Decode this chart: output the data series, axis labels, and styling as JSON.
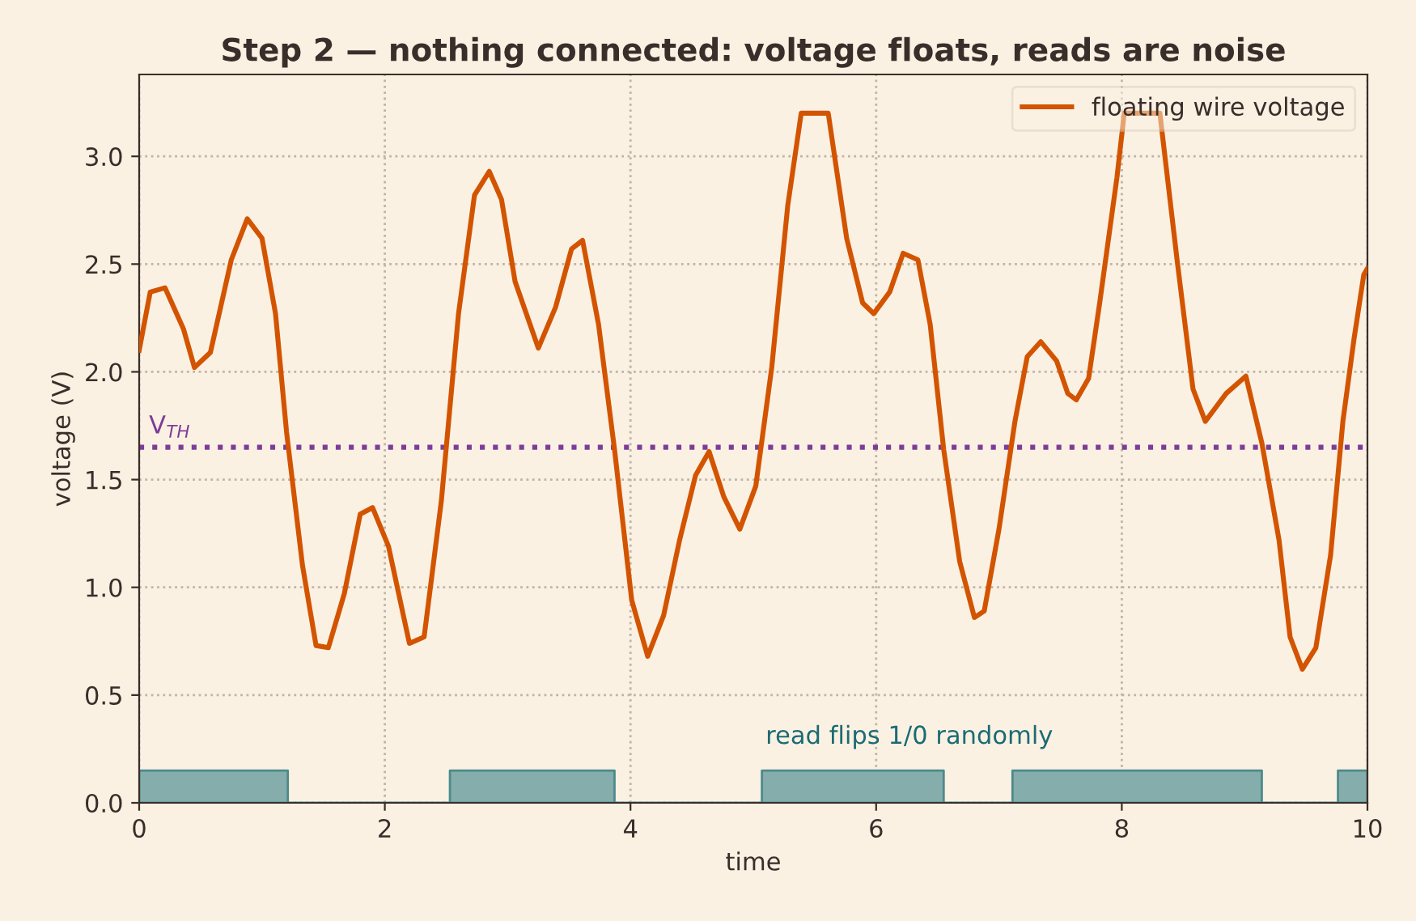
{
  "chart_data": {
    "type": "line",
    "title": "Step 2 — nothing connected: voltage floats, reads are noise",
    "xlabel": "time",
    "ylabel": "voltage (V)",
    "xlim": [
      0,
      10
    ],
    "ylim": [
      0,
      3.38
    ],
    "xticks": [
      0,
      2,
      4,
      6,
      8,
      10
    ],
    "yticks": [
      {
        "value": 0,
        "label": "0.0"
      },
      {
        "value": 0.5,
        "label": "0.5"
      },
      {
        "value": 1,
        "label": "1.0"
      },
      {
        "value": 1.5,
        "label": "1.5"
      },
      {
        "value": 2,
        "label": "2.0"
      },
      {
        "value": 2.5,
        "label": "2.5"
      },
      {
        "value": 3,
        "label": "3.0"
      }
    ],
    "grid": true,
    "legend": "top right",
    "marker": "none",
    "line_style": "solid",
    "series": [
      {
        "name": "floating wire voltage",
        "color": "#d35400",
        "x": [
          0,
          0.09,
          0.21,
          0.36,
          0.45,
          0.58,
          0.75,
          0.88,
          1.0,
          1.11,
          1.2,
          1.33,
          1.44,
          1.54,
          1.67,
          1.8,
          1.9,
          2.03,
          2.2,
          2.32,
          2.46,
          2.6,
          2.73,
          2.85,
          2.95,
          3.06,
          3.25,
          3.39,
          3.52,
          3.61,
          3.74,
          3.87,
          4.01,
          4.14,
          4.27,
          4.4,
          4.53,
          4.64,
          4.76,
          4.89,
          5.02,
          5.15,
          5.28,
          5.39,
          5.61,
          5.76,
          5.89,
          5.98,
          6.11,
          6.22,
          6.34,
          6.44,
          6.55,
          6.68,
          6.8,
          6.88,
          7.0,
          7.13,
          7.23,
          7.34,
          7.47,
          7.56,
          7.63,
          7.73,
          7.82,
          7.96,
          8.02,
          8.31,
          8.45,
          8.58,
          8.68,
          8.85,
          9.01,
          9.14,
          9.28,
          9.37,
          9.47,
          9.58,
          9.7,
          9.8,
          9.89,
          9.97,
          10
        ],
        "values": [
          2.1,
          2.37,
          2.39,
          2.2,
          2.02,
          2.09,
          2.52,
          2.71,
          2.62,
          2.27,
          1.72,
          1.1,
          0.73,
          0.72,
          0.97,
          1.34,
          1.37,
          1.19,
          0.74,
          0.77,
          1.4,
          2.27,
          2.82,
          2.93,
          2.8,
          2.42,
          2.11,
          2.3,
          2.57,
          2.61,
          2.22,
          1.64,
          0.94,
          0.68,
          0.87,
          1.22,
          1.52,
          1.63,
          1.42,
          1.27,
          1.47,
          2.02,
          2.77,
          3.2,
          3.2,
          2.62,
          2.32,
          2.27,
          2.37,
          2.55,
          2.52,
          2.22,
          1.64,
          1.12,
          0.86,
          0.89,
          1.27,
          1.77,
          2.07,
          2.14,
          2.05,
          1.9,
          1.87,
          1.97,
          2.32,
          2.9,
          3.2,
          3.2,
          2.52,
          1.92,
          1.77,
          1.9,
          1.98,
          1.67,
          1.22,
          0.77,
          0.62,
          0.72,
          1.15,
          1.77,
          2.15,
          2.45,
          2.48
        ]
      },
      {
        "color": "#85adab",
        "type": "area",
        "x": [
          0,
          1.21,
          1.21,
          2.53,
          2.53,
          3.87,
          3.87,
          5.07,
          5.07,
          6.55,
          6.55,
          7.11,
          7.11,
          9.14,
          9.14,
          9.76,
          9.76,
          10
        ],
        "values": [
          0.15,
          0.15,
          0,
          0,
          0.15,
          0.15,
          0,
          0,
          0.15,
          0.15,
          0,
          0,
          0.15,
          0.15,
          0,
          0,
          0.15,
          0.15
        ]
      }
    ],
    "ref_lines": [
      {
        "axis": "y",
        "value": 1.65,
        "label": "V$_{TH}$",
        "color": "#7d3c98",
        "line_style": "dotted"
      }
    ],
    "annotations": [
      "read flips 1/0 randomly"
    ]
  }
}
